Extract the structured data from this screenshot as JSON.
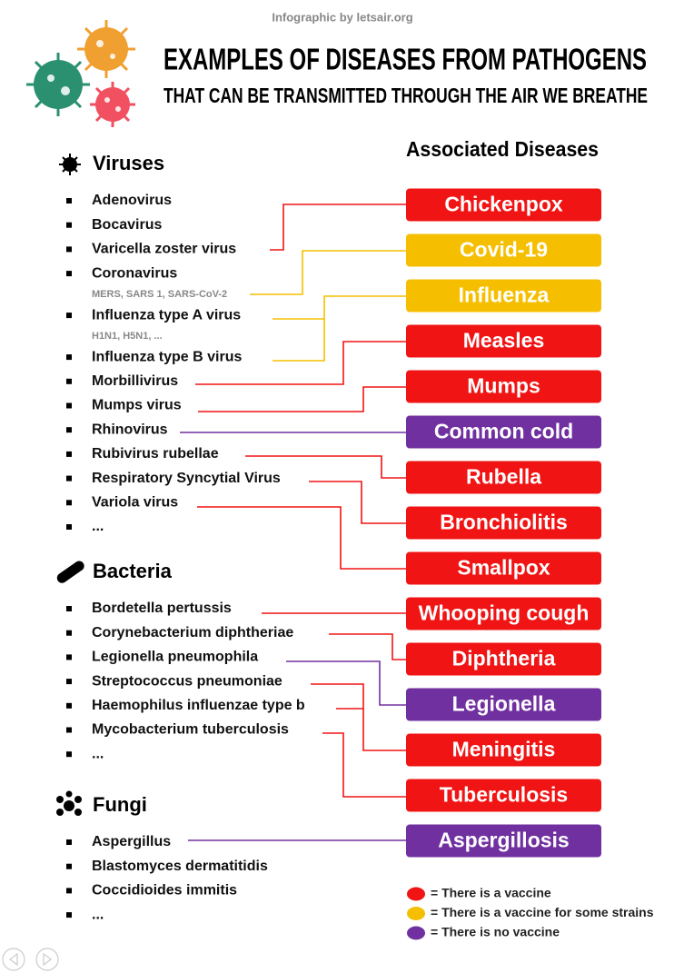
{
  "credit": "Infographic by letsair.org",
  "title": [
    "EXAMPLES OF DISEASES FROM PATHOGENS",
    "THAT CAN BE TRANSMITTED THROUGH THE AIR WE BREATHE"
  ],
  "diseases_heading": "Associated Diseases",
  "groups": [
    {
      "name": "Viruses",
      "items": [
        {
          "name": "Adenovirus"
        },
        {
          "name": "Bocavirus"
        },
        {
          "name": "Varicella zoster virus"
        },
        {
          "name": "Coronavirus",
          "note": "MERS, SARS 1, SARS-CoV-2"
        },
        {
          "name": "Influenza type A virus",
          "note": "H1N1, H5N1, ..."
        },
        {
          "name": "Influenza type B virus"
        },
        {
          "name": "Morbillivirus"
        },
        {
          "name": "Mumps virus"
        },
        {
          "name": "Rhinovirus"
        },
        {
          "name": "Rubivirus rubellae"
        },
        {
          "name": "Respiratory Syncytial Virus"
        },
        {
          "name": "Variola virus"
        },
        {
          "name": "..."
        }
      ]
    },
    {
      "name": "Bacteria",
      "items": [
        {
          "name": "Bordetella pertussis"
        },
        {
          "name": "Corynebacterium diphtheriae"
        },
        {
          "name": "Legionella pneumophila"
        },
        {
          "name": "Streptococcus pneumoniae"
        },
        {
          "name": "Haemophilus influenzae type b"
        },
        {
          "name": "Mycobacterium tuberculosis"
        },
        {
          "name": "..."
        }
      ]
    },
    {
      "name": "Fungi",
      "items": [
        {
          "name": "Aspergillus"
        },
        {
          "name": "Blastomyces dermatitidis"
        },
        {
          "name": "Coccidioides immitis"
        },
        {
          "name": "..."
        }
      ]
    }
  ],
  "diseases": [
    {
      "name": "Chickenpox",
      "color": "#f01414"
    },
    {
      "name": "Covid-19",
      "color": "#f5bf00"
    },
    {
      "name": "Influenza",
      "color": "#f5bf00"
    },
    {
      "name": "Measles",
      "color": "#f01414"
    },
    {
      "name": "Mumps",
      "color": "#f01414"
    },
    {
      "name": "Common cold",
      "color": "#7030a0"
    },
    {
      "name": "Rubella",
      "color": "#f01414"
    },
    {
      "name": "Bronchiolitis",
      "color": "#f01414"
    },
    {
      "name": "Smallpox",
      "color": "#f01414"
    },
    {
      "name": "Whooping cough",
      "color": "#f01414"
    },
    {
      "name": "Diphtheria",
      "color": "#f01414"
    },
    {
      "name": "Legionella",
      "color": "#7030a0"
    },
    {
      "name": "Meningitis",
      "color": "#f01414"
    },
    {
      "name": "Tuberculosis",
      "color": "#f01414"
    },
    {
      "name": "Aspergillosis",
      "color": "#7030a0"
    }
  ],
  "legend": [
    {
      "color": "#f01414",
      "label": "= There is a vaccine"
    },
    {
      "color": "#f5bf00",
      "label": "= There is a vaccine for some strains"
    },
    {
      "color": "#7030a0",
      "label": "= There is no vaccine"
    }
  ]
}
